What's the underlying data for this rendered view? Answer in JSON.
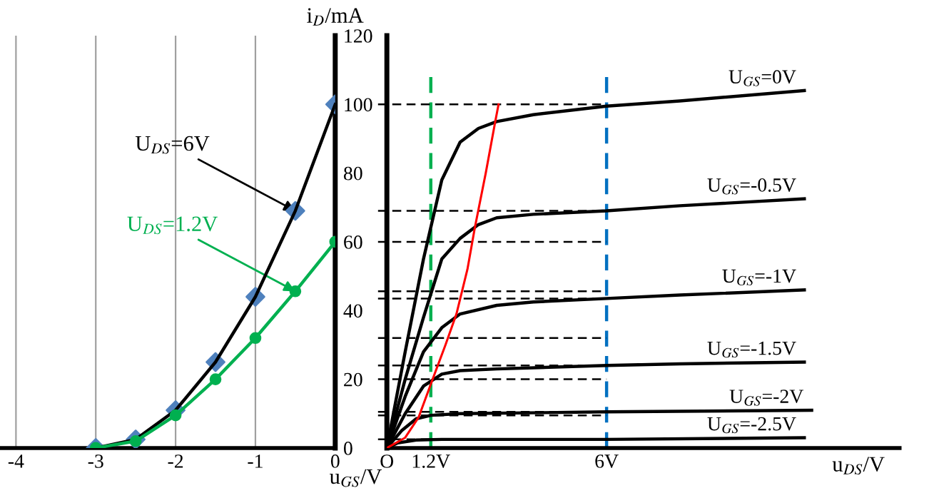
{
  "chart_data": [
    {
      "type": "line",
      "x": [
        -3,
        -2.5,
        -2,
        -1.5,
        -1,
        -0.5,
        0
      ],
      "series": [
        {
          "color": "#000000",
          "marker": "none",
          "values": [
            0,
            2.5,
            11,
            25,
            44,
            69,
            100
          ]
        },
        {
          "type": "scatter",
          "color": "#4f81bd",
          "marker": "diamond",
          "values": [
            0,
            2.5,
            11,
            25,
            44,
            69,
            100
          ]
        },
        {
          "color": "#00b050",
          "marker": "circle",
          "values": [
            0,
            2,
            9.5,
            20,
            32,
            45.6,
            60
          ]
        }
      ],
      "xlim": [
        -4.2,
        0
      ],
      "xticks": [
        -4,
        -3,
        -2,
        -1,
        0
      ],
      "ylim": [
        0,
        120
      ],
      "yticks": [
        0,
        20,
        40,
        60,
        80,
        100,
        120
      ],
      "xlabel": "u$_{GS}$/V",
      "ylabel": "i$_{D}$/mA",
      "grid": "x",
      "annotations": [
        {
          "text": "U$_{DS}$=6V",
          "x": -0.5,
          "y": 69
        },
        {
          "text": "U$_{DS}$=1.2V",
          "x": -0.5,
          "y": 45.6
        }
      ]
    },
    {
      "type": "line",
      "series": [
        {
          "name": "U$_{GS}$=0V",
          "color": "#000000",
          "x": [
            0,
            0.5,
            1,
            1.5,
            2,
            2.5,
            3,
            4,
            6,
            8,
            11.4
          ],
          "values": [
            0,
            28,
            55,
            78,
            89,
            93,
            95,
            97,
            99.5,
            101,
            104
          ]
        },
        {
          "name": "U$_{GS}$=-0.5V",
          "color": "#000000",
          "x": [
            0,
            0.5,
            1,
            1.5,
            2,
            2.5,
            3,
            4,
            6,
            8,
            11.4
          ],
          "values": [
            0,
            20,
            38,
            55,
            61,
            65,
            67,
            68,
            69,
            70.5,
            72.5
          ]
        },
        {
          "name": "U$_{GS}$=-1V",
          "color": "#000000",
          "x": [
            0,
            0.5,
            1,
            1.5,
            2,
            3,
            4,
            6,
            8,
            11.4
          ],
          "values": [
            0,
            15,
            28,
            35,
            39,
            41.5,
            42.5,
            43.5,
            44.5,
            46
          ]
        },
        {
          "name": "U$_{GS}$=-1.5V",
          "color": "#000000",
          "x": [
            0,
            0.5,
            1,
            1.5,
            2,
            3,
            6,
            8,
            11.4
          ],
          "values": [
            0,
            10,
            18,
            21.5,
            22.5,
            23,
            24,
            24.5,
            25
          ]
        },
        {
          "name": "U$_{GS}$=-2V",
          "color": "#000000",
          "x": [
            0,
            0.4,
            0.8,
            1.2,
            2,
            6,
            11.6
          ],
          "values": [
            0,
            5,
            8.5,
            9.5,
            10,
            10.5,
            11
          ]
        },
        {
          "name": "U$_{GS}$=-2.5V",
          "color": "#000000",
          "x": [
            0,
            0.3,
            0.8,
            1.5,
            6,
            11.4
          ],
          "values": [
            0,
            1.5,
            2.3,
            2.5,
            2.5,
            3
          ]
        },
        {
          "color": "#ff0000",
          "x": [
            0,
            0.5,
            0.87,
            1.25,
            1.6,
            1.9,
            2.2,
            2.4,
            2.7,
            2.96,
            3.05
          ],
          "values": [
            0,
            3,
            9,
            20,
            30,
            39,
            52,
            64,
            80,
            95,
            100
          ]
        }
      ],
      "xlim": [
        0,
        14
      ],
      "xticks": [
        {
          "value": 0,
          "label": "O"
        },
        {
          "value": 1.2,
          "label": "1.2V"
        },
        {
          "value": 6,
          "label": "6V"
        }
      ],
      "ylim": [
        0,
        120
      ],
      "tick_labels": "x",
      "xlabel": "u$_{DS}$/V",
      "ref_lines": [
        {
          "axis": "x",
          "value": 1.2,
          "color": "#00b050",
          "line_style": "dashed"
        },
        {
          "axis": "x",
          "value": 6,
          "color": "#0070c0",
          "line_style": "dashed"
        },
        {
          "axis": "y",
          "value": 100,
          "color": "#000000",
          "line_style": "dashed"
        },
        {
          "axis": "y",
          "value": 69,
          "color": "#000000",
          "line_style": "dashed"
        },
        {
          "axis": "y",
          "value": 60,
          "color": "#000000",
          "line_style": "dashed"
        },
        {
          "axis": "y",
          "value": 45.6,
          "color": "#000000",
          "line_style": "dashed"
        },
        {
          "axis": "y",
          "value": 43.5,
          "color": "#000000",
          "line_style": "dashed"
        },
        {
          "axis": "y",
          "value": 32,
          "color": "#000000",
          "line_style": "dashed"
        },
        {
          "axis": "y",
          "value": 24,
          "color": "#000000",
          "line_style": "dashed"
        },
        {
          "axis": "y",
          "value": 20,
          "color": "#000000",
          "line_style": "dashed"
        },
        {
          "axis": "y",
          "value": 10.5,
          "color": "#000000",
          "line_style": "dashed"
        },
        {
          "axis": "y",
          "value": 9.5,
          "color": "#000000",
          "line_style": "dashed"
        },
        {
          "axis": "y",
          "value": 2.5,
          "color": "#000000",
          "line_style": "dashed"
        }
      ]
    }
  ]
}
